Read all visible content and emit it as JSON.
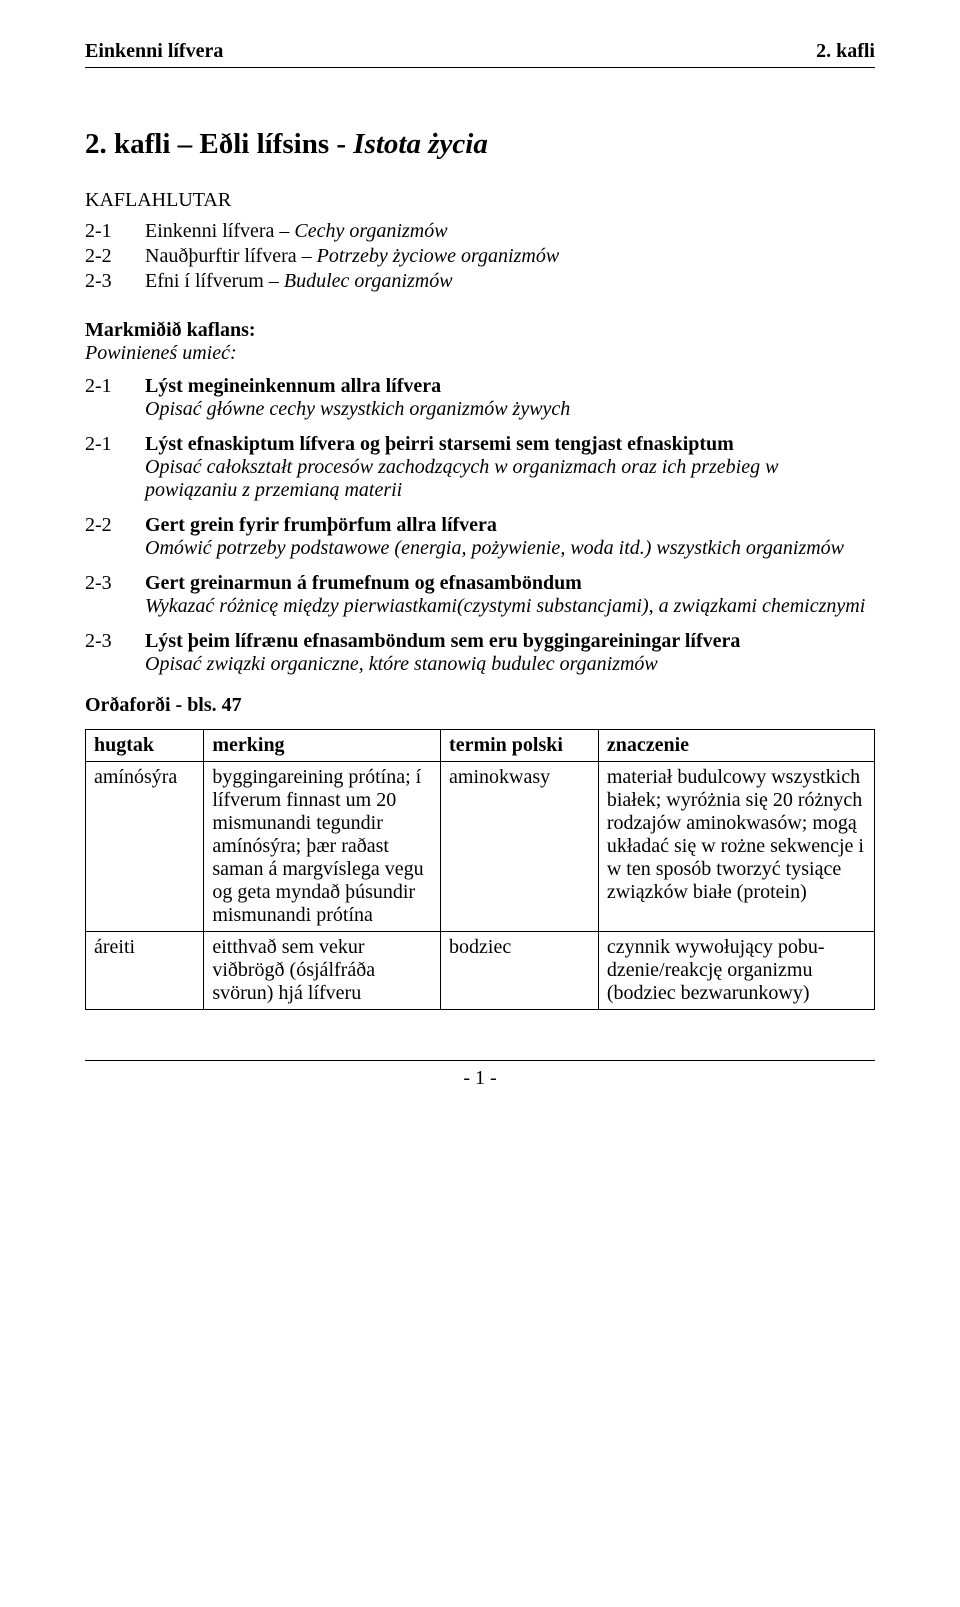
{
  "header": {
    "left": "Einkenni lífvera",
    "right": "2. kafli"
  },
  "chapter": {
    "prefix": "2. kafli – Eðli lífsins - ",
    "italic": "Istota życia"
  },
  "kaflahlutar_label": "KAFLAHLUTAR",
  "toc": [
    {
      "num": "2-1",
      "main": "Einkenni lífvera – ",
      "italic": "Cechy organizmów"
    },
    {
      "num": "2-2",
      "main": "Nauðþurftir lífvera – ",
      "italic": "Potrzeby życiowe organizmów"
    },
    {
      "num": "2-3",
      "main": "Efni í lífverum – ",
      "italic": "Budulec organizmów"
    }
  ],
  "goals_heading": "Markmiðið kaflans:",
  "goals_sub": "Powinieneś umieć:",
  "goals": [
    {
      "num": "2-1",
      "bold": "Lýst megineinkennum allra lífvera",
      "italic": "Opisać główne cechy wszystkich organizmów żywych"
    },
    {
      "num": "2-1",
      "bold": "Lýst efnaskiptum lífvera og þeirri starsemi sem tengjast efnaskiptum",
      "italic": "Opisać całokształt procesów zachodzących w organizmach oraz ich przebieg w powiązaniu z przemianą materii"
    },
    {
      "num": "2-2",
      "bold": "Gert grein fyrir frumþörfum allra lífvera",
      "italic": "Omówić potrzeby podstawowe (energia, pożywienie, woda itd.) wszystkich organizmów"
    },
    {
      "num": "2-3",
      "bold": "Gert greinarmun á frumefnum og efnasamböndum",
      "italic": "Wykazać różnicę między pierwiastkami(czystymi substancjami), a związkami chemicznymi"
    },
    {
      "num": "2-3",
      "bold": "Lýst þeim lífrænu efnasamböndum sem eru byggingareiningar lífvera",
      "italic": "Opisać związki organiczne, które stanowią budulec organizmów"
    }
  ],
  "vocab_heading": "Orðaforði - bls. 47",
  "table": {
    "headers": [
      "hugtak",
      "merking",
      "termin polski",
      "znaczenie"
    ],
    "rows": [
      [
        "amínósýra",
        "byggingareining prótína; í lífverum finnast um 20 mismunandi tegundir amínósýra; þær raðast saman á margvíslega vegu og geta myndað þúsundir mismunandi prótína",
        "aminokwasy",
        "materiał budulcowy wszystkich białek; wyróżnia się 20 różnych rodzajów aminokwasów; mogą układać się w rożne sekwencje i w ten sposób tworzyć tysiące związków białe (protein)"
      ],
      [
        "áreiti",
        "eitthvað sem vekur viðbrögð (ósjálfráða svörun) hjá lífveru",
        "bodziec",
        "czynnik wywołujący pobu-dzenie/reakcję organizmu (bodziec bezwarunkowy)"
      ]
    ]
  },
  "footer": {
    "page": "- 1 -"
  }
}
